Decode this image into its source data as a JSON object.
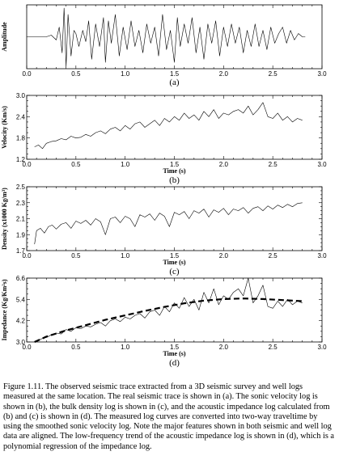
{
  "caption": "Figure 1.11. The observed seismic trace extracted from a 3D seismic survey and well logs measured at the same location. The real seismic trace is shown in (a). The sonic velocity log is shown in (b), the bulk density log is shown in (c), and the acoustic impedance log calculated from (b) and (c) is shown in (d). The measured log curves are converted into two-way traveltime by using the smoothed sonic velocity log. Note the major features shown in both seismic and well log data are aligned. The low-frequency trend of the acoustic impedance log is shown in (d), which is a polynomial regression of the impedance log.",
  "chart_data": [
    {
      "type": "line",
      "panel_label": "(a)",
      "xlabel": "",
      "ylabel": "Amplitude",
      "xlim": [
        0.0,
        3.0
      ],
      "ylim": [
        -1.0,
        1.0
      ],
      "x_ticks": [
        "0.0",
        "0.5",
        "1.0",
        "1.5",
        "2.0",
        "2.5",
        "3.0"
      ],
      "y_ticks": [],
      "series": [
        {
          "x": [
            0.0,
            0.2,
            0.25,
            0.3,
            0.33,
            0.36,
            0.38,
            0.4,
            0.42,
            0.45,
            0.48,
            0.5,
            0.53,
            0.57,
            0.6,
            0.63,
            0.66,
            0.7,
            0.74,
            0.78,
            0.8,
            0.83,
            0.86,
            0.9,
            0.94,
            0.98,
            1.02,
            1.06,
            1.1,
            1.14,
            1.18,
            1.22,
            1.26,
            1.3,
            1.34,
            1.38,
            1.42,
            1.46,
            1.5,
            1.53,
            1.56,
            1.6,
            1.64,
            1.68,
            1.72,
            1.76,
            1.8,
            1.84,
            1.88,
            1.92,
            1.96,
            2.0,
            2.04,
            2.08,
            2.12,
            2.16,
            2.2,
            2.24,
            2.28,
            2.32,
            2.36,
            2.4,
            2.44,
            2.48,
            2.52,
            2.56,
            2.6,
            2.64,
            2.68,
            2.72,
            2.76,
            2.8,
            2.83
          ],
          "y": [
            0,
            0,
            0.05,
            -0.1,
            0.3,
            -0.5,
            0.9,
            -0.95,
            0.7,
            -0.6,
            0.2,
            0.1,
            -0.3,
            0.2,
            -0.15,
            0.5,
            -0.7,
            0.4,
            -0.3,
            0.6,
            -0.8,
            0.5,
            -0.2,
            0.7,
            -0.6,
            0.3,
            -0.4,
            0.5,
            -0.3,
            0.2,
            -0.5,
            0.4,
            -0.2,
            0.3,
            -0.6,
            0.7,
            -0.4,
            0.2,
            -0.8,
            0.6,
            -0.3,
            0.4,
            -0.2,
            0.6,
            -0.5,
            0.3,
            -0.7,
            0.4,
            -0.2,
            0.5,
            -0.6,
            0.3,
            -0.3,
            0.4,
            -0.2,
            0.3,
            -0.5,
            0.2,
            -0.3,
            0.4,
            -0.3,
            0.2,
            -0.4,
            0.3,
            -0.2,
            0.1,
            0.3,
            -0.2,
            0.2,
            -0.1,
            0.1,
            0,
            0
          ]
        }
      ]
    },
    {
      "type": "line",
      "panel_label": "(b)",
      "xlabel": "Time (s)",
      "ylabel": "Velocity (Km/s)",
      "xlim": [
        0.0,
        3.0
      ],
      "ylim": [
        1.2,
        3.0
      ],
      "x_ticks": [
        "0.0",
        "0.5",
        "1.0",
        "1.5",
        "2.0",
        "2.5",
        "3.0"
      ],
      "y_ticks": [
        "1.2",
        "1.8",
        "2.4",
        "3.0"
      ],
      "series": [
        {
          "x": [
            0.08,
            0.12,
            0.16,
            0.2,
            0.25,
            0.3,
            0.35,
            0.4,
            0.45,
            0.5,
            0.55,
            0.6,
            0.65,
            0.7,
            0.75,
            0.8,
            0.85,
            0.9,
            0.95,
            1.0,
            1.05,
            1.1,
            1.15,
            1.2,
            1.25,
            1.3,
            1.35,
            1.4,
            1.45,
            1.5,
            1.55,
            1.6,
            1.65,
            1.7,
            1.75,
            1.8,
            1.85,
            1.9,
            1.95,
            2.0,
            2.05,
            2.1,
            2.15,
            2.2,
            2.25,
            2.3,
            2.35,
            2.4,
            2.45,
            2.5,
            2.55,
            2.6,
            2.65,
            2.7,
            2.75,
            2.8
          ],
          "y": [
            1.55,
            1.6,
            1.5,
            1.65,
            1.7,
            1.72,
            1.78,
            1.75,
            1.85,
            1.8,
            1.82,
            1.9,
            1.85,
            1.95,
            2.0,
            1.92,
            2.05,
            2.1,
            2.0,
            2.15,
            2.05,
            2.2,
            2.25,
            2.1,
            2.2,
            2.3,
            2.15,
            2.35,
            2.25,
            2.4,
            2.3,
            2.5,
            2.35,
            2.45,
            2.3,
            2.55,
            2.4,
            2.6,
            2.35,
            2.5,
            2.45,
            2.55,
            2.6,
            2.5,
            2.7,
            2.45,
            2.6,
            2.8,
            2.4,
            2.35,
            2.5,
            2.3,
            2.4,
            2.25,
            2.35,
            2.3
          ]
        }
      ]
    },
    {
      "type": "line",
      "panel_label": "(c)",
      "xlabel": "Time (s)",
      "ylabel": "Density (x1000 Kg/m³)",
      "xlim": [
        0.0,
        3.0
      ],
      "ylim": [
        1.7,
        2.5
      ],
      "x_ticks": [
        "0.0",
        "0.5",
        "1.0",
        "1.5",
        "2.0",
        "2.5",
        "3.0"
      ],
      "y_ticks": [
        "1.7",
        "1.9",
        "2.1",
        "2.3",
        "2.5"
      ],
      "series": [
        {
          "x": [
            0.08,
            0.1,
            0.14,
            0.18,
            0.22,
            0.26,
            0.3,
            0.35,
            0.4,
            0.45,
            0.5,
            0.55,
            0.6,
            0.65,
            0.7,
            0.75,
            0.8,
            0.85,
            0.9,
            0.95,
            1.0,
            1.05,
            1.1,
            1.15,
            1.2,
            1.25,
            1.3,
            1.35,
            1.4,
            1.45,
            1.5,
            1.55,
            1.6,
            1.65,
            1.7,
            1.75,
            1.8,
            1.85,
            1.9,
            1.95,
            2.0,
            2.05,
            2.1,
            2.15,
            2.2,
            2.25,
            2.3,
            2.35,
            2.4,
            2.45,
            2.5,
            2.55,
            2.6,
            2.65,
            2.7,
            2.75,
            2.8
          ],
          "y": [
            1.78,
            1.95,
            1.98,
            1.92,
            2.0,
            2.02,
            1.97,
            2.03,
            2.05,
            1.98,
            2.07,
            2.04,
            2.08,
            2.02,
            2.1,
            2.06,
            1.9,
            2.1,
            2.12,
            2.05,
            2.13,
            2.1,
            2.0,
            2.15,
            2.12,
            2.16,
            2.08,
            2.17,
            2.13,
            2.0,
            2.18,
            2.15,
            2.19,
            2.1,
            2.2,
            2.17,
            2.22,
            2.12,
            2.21,
            2.18,
            2.23,
            2.15,
            2.22,
            2.2,
            2.24,
            2.17,
            2.23,
            2.25,
            2.2,
            2.26,
            2.22,
            2.27,
            2.24,
            2.28,
            2.25,
            2.29,
            2.3
          ]
        }
      ]
    },
    {
      "type": "line",
      "panel_label": "(d)",
      "xlabel": "Time (s)",
      "ylabel": "Impedance (Kg/Km²s)",
      "xlim": [
        0.0,
        3.0
      ],
      "ylim": [
        3.0,
        6.6
      ],
      "x_ticks": [
        "0.0",
        "0.5",
        "1.0",
        "1.5",
        "2.0",
        "2.5",
        "3.0"
      ],
      "y_ticks": [
        "3.0",
        "4.2",
        "5.4",
        "6.6"
      ],
      "series": [
        {
          "x": [
            0.08,
            0.12,
            0.16,
            0.2,
            0.25,
            0.3,
            0.35,
            0.4,
            0.45,
            0.5,
            0.55,
            0.6,
            0.65,
            0.7,
            0.75,
            0.8,
            0.85,
            0.9,
            0.95,
            1.0,
            1.05,
            1.1,
            1.15,
            1.2,
            1.25,
            1.3,
            1.35,
            1.4,
            1.45,
            1.5,
            1.55,
            1.6,
            1.65,
            1.7,
            1.75,
            1.8,
            1.85,
            1.9,
            1.95,
            2.0,
            2.05,
            2.1,
            2.15,
            2.2,
            2.25,
            2.3,
            2.35,
            2.4,
            2.45,
            2.5,
            2.55,
            2.6,
            2.65,
            2.7,
            2.75,
            2.8
          ],
          "y": [
            3.0,
            3.1,
            3.2,
            3.25,
            3.4,
            3.5,
            3.45,
            3.7,
            3.6,
            3.8,
            3.75,
            3.9,
            3.85,
            4.0,
            4.1,
            3.9,
            4.2,
            4.3,
            4.15,
            4.4,
            4.3,
            4.5,
            4.6,
            4.35,
            4.7,
            4.8,
            4.5,
            5.0,
            4.7,
            5.2,
            4.9,
            5.5,
            5.0,
            5.4,
            4.8,
            5.8,
            5.2,
            6.0,
            5.1,
            5.6,
            5.4,
            5.8,
            6.0,
            5.6,
            6.6,
            5.2,
            5.6,
            6.2,
            5.0,
            4.9,
            5.3,
            5.0,
            5.4,
            5.1,
            5.3,
            5.2
          ]
        },
        {
          "x": [
            0.08,
            0.2,
            0.4,
            0.6,
            0.8,
            1.0,
            1.2,
            1.4,
            1.6,
            1.8,
            2.0,
            2.2,
            2.4,
            2.6,
            2.8
          ],
          "y": [
            3.0,
            3.3,
            3.65,
            3.95,
            4.25,
            4.5,
            4.75,
            4.98,
            5.18,
            5.33,
            5.42,
            5.45,
            5.42,
            5.36,
            5.3
          ]
        }
      ]
    }
  ]
}
